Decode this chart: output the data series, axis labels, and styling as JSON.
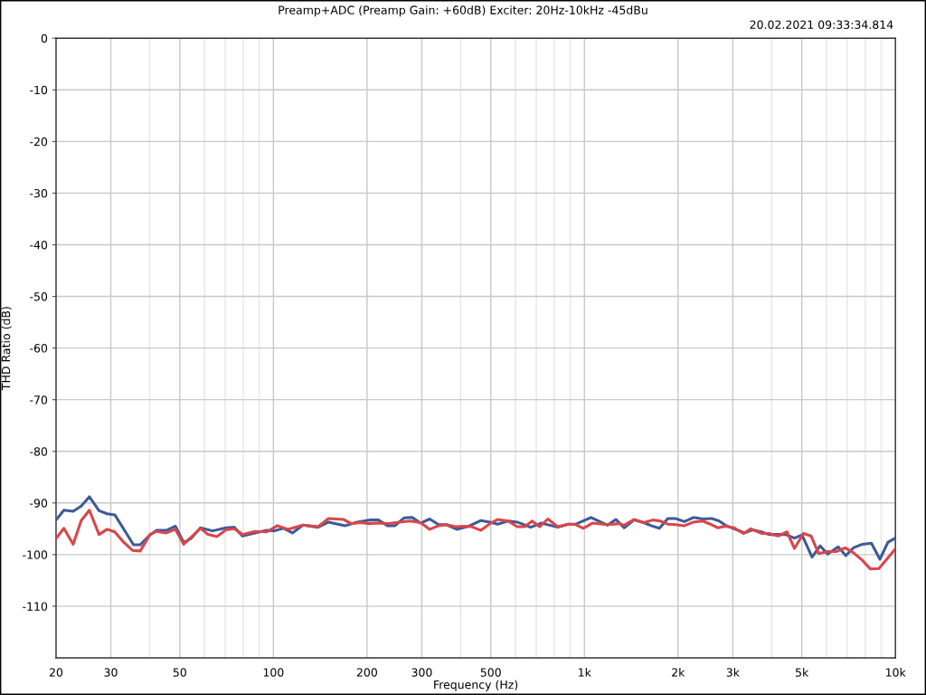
{
  "chart_data": {
    "type": "line",
    "title": "Preamp+ADC (Preamp Gain: +60dB) Exciter: 20Hz-10kHz -45dBu",
    "subtitle": "20.02.2021 09:33:34.814",
    "xlabel": "Frequency (Hz)",
    "ylabel": "THD Ratio (dB)",
    "log": "x",
    "grid": true,
    "marker": "none",
    "line_style": "solid",
    "xlim": [
      20,
      10000
    ],
    "ylim": [
      -120,
      0
    ],
    "xticks": [
      20,
      30,
      {
        "value": 40,
        "label": null
      },
      50,
      {
        "value": 60,
        "label": null
      },
      {
        "value": 70,
        "label": null
      },
      {
        "value": 80,
        "label": null
      },
      {
        "value": 90,
        "label": null
      },
      100,
      200,
      300,
      {
        "value": 400,
        "label": null
      },
      500,
      {
        "value": 600,
        "label": null
      },
      {
        "value": 700,
        "label": null
      },
      {
        "value": 800,
        "label": null
      },
      {
        "value": 900,
        "label": null
      },
      {
        "value": 1000,
        "label": "1k"
      },
      {
        "value": 2000,
        "label": "2k"
      },
      {
        "value": 3000,
        "label": "3k"
      },
      {
        "value": 4000,
        "label": null
      },
      {
        "value": 5000,
        "label": "5k"
      },
      {
        "value": 6000,
        "label": null
      },
      {
        "value": 7000,
        "label": null
      },
      {
        "value": 8000,
        "label": null
      },
      {
        "value": 9000,
        "label": null
      },
      {
        "value": 10000,
        "label": "10k"
      }
    ],
    "yticks": [
      0,
      -10,
      -20,
      -30,
      -40,
      -50,
      -60,
      -70,
      -80,
      -90,
      -100,
      -110
    ],
    "series": [
      {
        "color": "#3d5a98",
        "x": [
          20,
          21.2,
          22.7,
          24.1,
          25.6,
          27.5,
          29.2,
          30.9,
          35.5,
          37.3,
          40.1,
          42.1,
          45.3,
          48.4,
          51.5,
          54.5,
          58.3,
          63.7,
          70.4,
          74.8,
          79.6,
          87.1,
          95.2,
          100.7,
          107.6,
          115.1,
          124.5,
          139.2,
          150.4,
          170.2,
          186,
          203.4,
          217.5,
          232.6,
          246,
          263,
          279.4,
          297.3,
          318,
          340,
          359.6,
          388.7,
          425,
          464.8,
          497,
          525.6,
          568.4,
          607.9,
          671.5,
          726,
          821.5,
          887,
          939,
          1050,
          1187,
          1263,
          1342,
          1444,
          1551,
          1640,
          1742,
          1854,
          1960,
          2096,
          2242,
          2398,
          2564,
          2712,
          2836,
          3032,
          3277,
          3466,
          3707,
          3918,
          4190,
          4429,
          4736,
          5007,
          5394,
          5727,
          6055,
          6547,
          6925,
          7320,
          7825,
          8369,
          8913,
          9464,
          10000
        ],
        "values": [
          -93.3,
          -91.4,
          -91.6,
          -90.6,
          -88.8,
          -91.5,
          -92.1,
          -92.3,
          -98.1,
          -98.1,
          -96.2,
          -95.3,
          -95.3,
          -94.5,
          -97.7,
          -96.8,
          -94.8,
          -95.4,
          -94.8,
          -94.7,
          -96.4,
          -95.8,
          -95.3,
          -95.4,
          -94.9,
          -95.8,
          -94.3,
          -94.7,
          -93.7,
          -94.4,
          -93.7,
          -93.3,
          -93.3,
          -94.4,
          -94.4,
          -92.9,
          -92.8,
          -93.9,
          -93.1,
          -94.2,
          -94.2,
          -95.1,
          -94.5,
          -93.4,
          -93.7,
          -94.1,
          -93.5,
          -93.7,
          -94.7,
          -93.9,
          -94.7,
          -94.1,
          -94.1,
          -92.8,
          -94.3,
          -93.2,
          -94.8,
          -93.3,
          -93.8,
          -94.4,
          -94.9,
          -93.0,
          -93.0,
          -93.6,
          -92.8,
          -93.1,
          -93.0,
          -93.5,
          -94.3,
          -95.0,
          -95.8,
          -95.2,
          -95.6,
          -96.1,
          -96.1,
          -96.1,
          -96.8,
          -96.2,
          -100.5,
          -98.3,
          -99.9,
          -98.5,
          -100.2,
          -98.7,
          -98.0,
          -97.8,
          -100.9,
          -97.6,
          -96.8
        ]
      },
      {
        "color": "#d9464a",
        "x": [
          20,
          21.2,
          22.7,
          24.1,
          25.6,
          27.5,
          29.2,
          30.9,
          33.0,
          35.3,
          37.3,
          40.1,
          42.1,
          45.3,
          48.4,
          51.5,
          54.5,
          58.3,
          61.6,
          65.9,
          70.4,
          74.8,
          79.6,
          87.1,
          95.2,
          103,
          111.3,
          124.5,
          139.2,
          150.4,
          168.3,
          177.9,
          190.2,
          203.4,
          217.5,
          235.2,
          254.4,
          274.9,
          297.3,
          318,
          340,
          359.6,
          384.3,
          411,
          434.6,
          464.8,
          497,
          525.6,
          568.4,
          607.9,
          642.4,
          679,
          718,
          762.7,
          821.5,
          887,
          939,
          992.6,
          1061,
          1187,
          1298,
          1342,
          1444,
          1551,
          1659,
          1754,
          1854,
          1960,
          2096,
          2242,
          2398,
          2564,
          2681,
          2836,
          3032,
          3242,
          3428,
          3707,
          3918,
          4190,
          4479,
          4736,
          5061,
          5354,
          5663,
          6055,
          6473,
          6893,
          7320,
          7825,
          8313,
          8851,
          10000
        ],
        "values": [
          -96.9,
          -94.9,
          -98.0,
          -93.4,
          -91.4,
          -96.1,
          -95.1,
          -95.6,
          -97.6,
          -99.2,
          -99.3,
          -96.1,
          -95.5,
          -95.8,
          -95.1,
          -98.0,
          -96.6,
          -94.9,
          -96.1,
          -96.5,
          -95.2,
          -95.0,
          -96.1,
          -95.5,
          -95.6,
          -94.4,
          -95.1,
          -94.3,
          -94.6,
          -93.0,
          -93.2,
          -94.0,
          -93.8,
          -94.0,
          -93.9,
          -94.0,
          -93.7,
          -93.5,
          -93.8,
          -95.1,
          -94.4,
          -94.2,
          -94.6,
          -94.5,
          -94.6,
          -95.3,
          -94.0,
          -93.2,
          -93.5,
          -94.6,
          -94.6,
          -93.5,
          -94.6,
          -93.1,
          -94.6,
          -94.1,
          -94.2,
          -94.9,
          -93.9,
          -94.2,
          -94.0,
          -94.3,
          -93.2,
          -93.8,
          -93.3,
          -93.5,
          -94.1,
          -94.2,
          -94.4,
          -93.7,
          -93.5,
          -94.2,
          -94.8,
          -94.5,
          -94.8,
          -95.9,
          -95.0,
          -95.9,
          -95.9,
          -96.4,
          -95.6,
          -98.8,
          -95.9,
          -96.4,
          -99.8,
          -99.4,
          -99.4,
          -98.7,
          -99.6,
          -101.1,
          -102.8,
          -102.7,
          -98.9
        ]
      }
    ]
  }
}
